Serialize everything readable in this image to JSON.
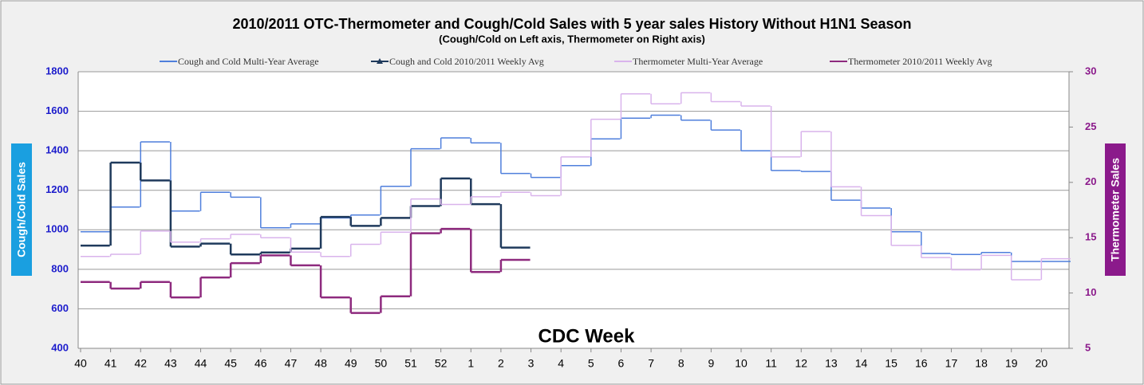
{
  "chart_data": {
    "type": "step-line",
    "title": "2010/2011 OTC-Thermometer and Cough/Cold Sales with 5 year sales History Without H1N1 Season",
    "subtitle": "(Cough/Cold on Left axis, Thermometer on Right axis)",
    "x_label": "CDC Week",
    "y_label": "Cough/Cold Sales",
    "y2_label": "Thermometer Sales",
    "categories": [
      "40",
      "41",
      "42",
      "43",
      "44",
      "45",
      "46",
      "47",
      "48",
      "49",
      "50",
      "51",
      "52",
      "1",
      "2",
      "3",
      "4",
      "5",
      "6",
      "7",
      "8",
      "9",
      "10",
      "11",
      "12",
      "13",
      "14",
      "15",
      "16",
      "17",
      "18",
      "19",
      "20"
    ],
    "ylim": [
      400,
      1800
    ],
    "yticks": [
      400,
      600,
      800,
      1000,
      1200,
      1400,
      1600,
      1800
    ],
    "y2lim": [
      5,
      30
    ],
    "y2ticks": [
      5,
      10,
      15,
      20,
      25,
      30
    ],
    "grid": true,
    "series": [
      {
        "name": "Cough and Cold Multi-Year Average",
        "color": "#4f7fdc",
        "values": [
          990,
          1115,
          1445,
          1095,
          1190,
          1165,
          1010,
          1030,
          1060,
          1075,
          1220,
          1410,
          1465,
          1440,
          1285,
          1265,
          1325,
          1460,
          1565,
          1580,
          1555,
          1505,
          1400,
          1300,
          1295,
          1150,
          1110,
          990,
          880,
          875,
          885,
          840,
          840
        ]
      },
      {
        "name": "Cough and Cold 2010/2011 Weekly Avg",
        "color": "#1f3a5c",
        "values": [
          920,
          1340,
          1250,
          915,
          930,
          875,
          885,
          905,
          1065,
          1020,
          1060,
          1120,
          1260,
          1130,
          910,
          null,
          null,
          null,
          null,
          null,
          null,
          null,
          null,
          null,
          null,
          null,
          null,
          null,
          null,
          null,
          null,
          null,
          null
        ]
      },
      {
        "name": "Thermometer Multi-Year Average",
        "color": "#d9b3ec",
        "axis": "y2",
        "values": [
          13.3,
          13.5,
          15.6,
          14.6,
          14.9,
          15.3,
          15.0,
          13.7,
          13.3,
          14.4,
          15.5,
          18.5,
          18.0,
          18.7,
          19.1,
          18.8,
          22.3,
          25.7,
          28.0,
          27.1,
          28.1,
          27.3,
          26.9,
          22.3,
          24.6,
          19.6,
          17.0,
          14.3,
          13.2,
          12.1,
          13.4,
          11.2,
          13.1
        ]
      },
      {
        "name": "Thermometer 2010/2011 Weekly Avg",
        "color": "#8e2a7e",
        "axis": "y2",
        "values": [
          11.0,
          10.4,
          11.0,
          9.6,
          11.4,
          12.7,
          13.4,
          12.5,
          9.6,
          8.2,
          9.7,
          15.4,
          15.8,
          11.9,
          13.0,
          null,
          null,
          null,
          null,
          null,
          null,
          null,
          null,
          null,
          null,
          null,
          null,
          null,
          null,
          null,
          null,
          null,
          null
        ]
      }
    ]
  }
}
